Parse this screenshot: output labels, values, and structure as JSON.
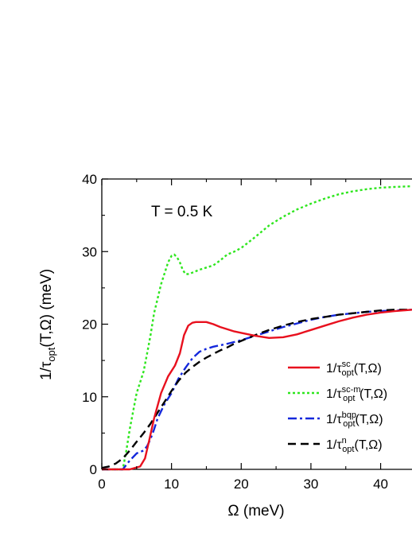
{
  "chart_data": {
    "type": "line",
    "title": "",
    "xlabel": "Ω (meV)",
    "ylabel": "1/τopt(T,Ω) (meV)",
    "ylabel_parts": {
      "pre": "1/τ",
      "sub": "opt",
      "post": "(T,Ω)  (meV)"
    },
    "xlim": [
      0,
      44.5
    ],
    "ylim": [
      0,
      40
    ],
    "xticks": [
      0,
      10,
      20,
      30,
      40
    ],
    "yticks": [
      0,
      10,
      20,
      30,
      40
    ],
    "xtick_labels": [
      "0",
      "10",
      "20",
      "30",
      "40"
    ],
    "ytick_labels": [
      "0",
      "10",
      "20",
      "30",
      "40"
    ],
    "grid": false,
    "legend_position": "center-right",
    "annotation": "T = 0.5 K",
    "series": [
      {
        "name": "1/τ_opt^sc(T,Ω)",
        "legend": {
          "pre": "1/τ",
          "sup": "sc",
          "sub": "opt",
          "post": "(T,Ω)"
        },
        "color": "#e8101e",
        "style": "solid",
        "x": [
          0,
          4,
          5.5,
          6.2,
          6.8,
          7.5,
          8.5,
          9.5,
          10.5,
          11.2,
          11.8,
          12.4,
          13,
          13.5,
          14,
          15,
          16,
          17,
          18,
          19,
          20,
          22,
          24,
          26,
          28,
          30,
          32,
          34,
          36,
          38,
          40,
          42,
          44.5
        ],
        "y": [
          0,
          0,
          0.4,
          1.5,
          4,
          7,
          10.5,
          12.8,
          14.3,
          16,
          18.5,
          19.8,
          20.2,
          20.3,
          20.3,
          20.3,
          20,
          19.6,
          19.3,
          19,
          18.8,
          18.4,
          18.1,
          18.2,
          18.6,
          19.2,
          19.8,
          20.4,
          20.9,
          21.3,
          21.6,
          21.8,
          22
        ]
      },
      {
        "name": "1/τ_opt^sc-m(T,Ω)",
        "legend": {
          "pre": "1/τ",
          "sup": "sc-m",
          "sub": "opt",
          "post": "(T,Ω)"
        },
        "color": "#2ee61e",
        "style": "dotted",
        "x": [
          0,
          3,
          3.5,
          4,
          4.5,
          5,
          5.5,
          6,
          6.5,
          7,
          7.5,
          8,
          8.5,
          9,
          9.5,
          10,
          10.4,
          10.8,
          11.2,
          11.6,
          12,
          12.5,
          13,
          14,
          15,
          16,
          17,
          18,
          19,
          20,
          22,
          24,
          26,
          28,
          30,
          32,
          34,
          36,
          38,
          40,
          42,
          44.5
        ],
        "y": [
          0,
          0,
          2.5,
          5.5,
          8,
          10.5,
          12,
          13.5,
          16,
          18.5,
          21.5,
          23.5,
          25.5,
          27,
          28.5,
          29.4,
          29.6,
          29.2,
          28.5,
          27.5,
          26.9,
          26.9,
          27.1,
          27.5,
          27.8,
          28.1,
          28.8,
          29.6,
          30,
          30.5,
          32,
          33.6,
          34.8,
          35.8,
          36.6,
          37.3,
          37.9,
          38.3,
          38.6,
          38.8,
          38.9,
          39
        ]
      },
      {
        "name": "1/τ_opt^bqp(T,Ω)",
        "legend": {
          "pre": "1/τ",
          "sup": "bqp",
          "sub": "opt",
          "post": "(T,Ω)"
        },
        "color": "#1428dc",
        "style": "dashdot",
        "x": [
          0,
          3,
          4,
          5,
          6,
          6.5,
          7,
          7.5,
          8,
          8.5,
          9,
          10,
          11,
          12,
          13,
          14,
          15,
          16,
          17,
          18,
          20,
          22,
          24,
          26,
          28,
          30,
          32,
          34,
          36,
          38,
          40,
          42,
          44.5
        ],
        "y": [
          0,
          0,
          1.2,
          2.2,
          2.6,
          3.2,
          4.2,
          5.5,
          7,
          8,
          9,
          10.5,
          12.5,
          14,
          15.3,
          16.2,
          16.6,
          16.9,
          17.1,
          17.3,
          17.8,
          18.4,
          19,
          19.6,
          20.1,
          20.6,
          21,
          21.3,
          21.5,
          21.7,
          21.8,
          21.9,
          22
        ]
      },
      {
        "name": "1/τ_opt^n(T,Ω)",
        "legend": {
          "pre": "1/τ",
          "sup": "n",
          "sub": "opt",
          "post": "(T,Ω)"
        },
        "color": "#000000",
        "style": "dashed",
        "x": [
          0,
          1,
          2,
          3,
          4,
          5,
          6,
          7,
          8,
          9,
          10,
          11,
          12,
          13,
          14,
          15,
          16,
          17,
          18,
          19,
          20,
          22,
          24,
          26,
          28,
          30,
          32,
          34,
          36,
          38,
          40,
          42,
          44.5
        ],
        "y": [
          0.2,
          0.4,
          0.8,
          1.5,
          2.6,
          3.8,
          5,
          6.3,
          7.8,
          9.3,
          10.8,
          12.2,
          13.3,
          14.1,
          14.8,
          15.4,
          15.9,
          16.4,
          16.8,
          17.3,
          17.7,
          18.5,
          19.2,
          19.8,
          20.3,
          20.7,
          21,
          21.3,
          21.5,
          21.7,
          21.9,
          22,
          22
        ]
      }
    ]
  }
}
